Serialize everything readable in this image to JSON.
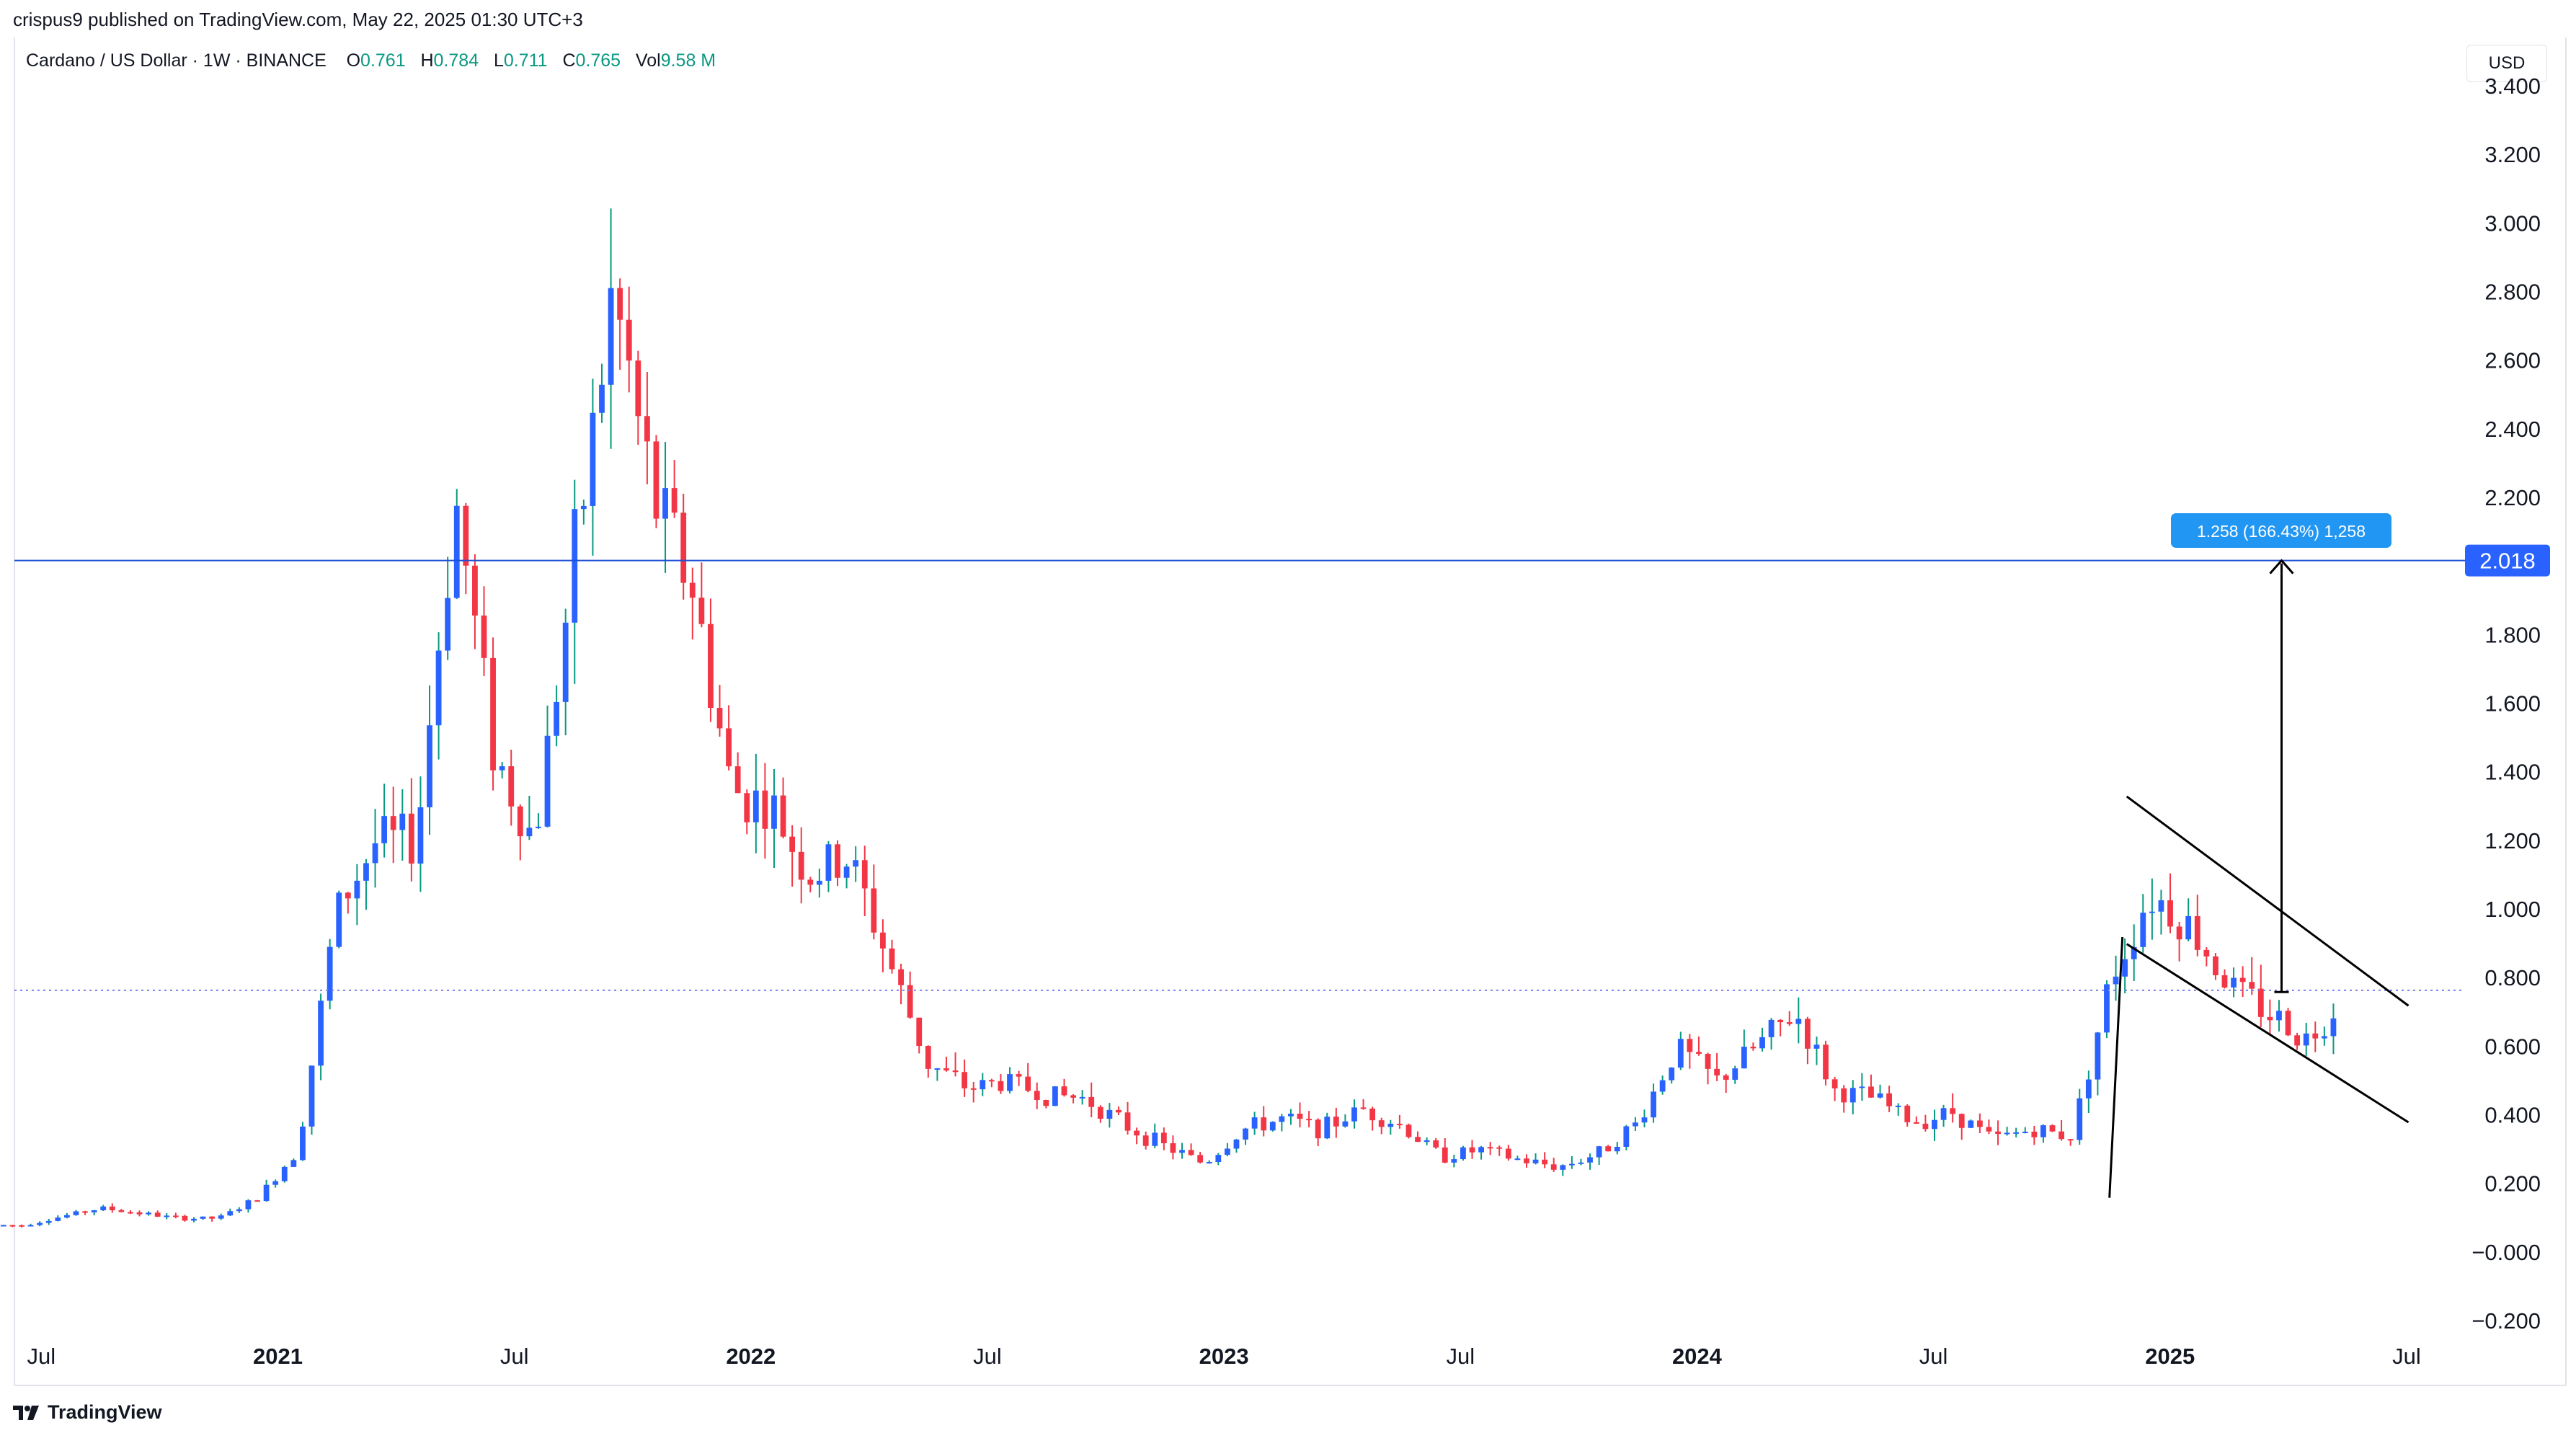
{
  "header": {
    "publisher": "crispus9 published on TradingView.com, May 22, 2025 01:30 UTC+3",
    "symbol_line": "Cardano / US Dollar · 1W · BINANCE",
    "ohlc": {
      "o_label": "O",
      "o": "0.761",
      "h_label": "H",
      "h": "0.784",
      "l_label": "L",
      "l": "0.711",
      "c_label": "C",
      "c": "0.765",
      "vol_label": "Vol",
      "vol": "9.58 M"
    }
  },
  "currency_button": "USD",
  "footer": {
    "brand": "TradingView",
    "logo_icon": "tradingview-logo-icon"
  },
  "colors": {
    "up": "#2962ff",
    "down": "#f23645",
    "level": "#1e4fd6",
    "label_bg": "#2962ff",
    "measure_bg": "#2196f3",
    "current": "#7b7ee8",
    "wick_up": "#089981",
    "wick_down": "#f23645"
  },
  "chart_data": {
    "type": "candlestick",
    "interval": "1W",
    "y_axis": {
      "min": -0.2,
      "max": 3.4,
      "ticks": [
        "3.400",
        "3.200",
        "3.000",
        "2.800",
        "2.600",
        "2.400",
        "2.200",
        "2.000",
        "1.800",
        "1.600",
        "1.400",
        "1.200",
        "1.000",
        "0.800",
        "0.600",
        "0.400",
        "0.200",
        "−0.000",
        "−0.200"
      ]
    },
    "x_axis_labels": [
      {
        "label": "Jul",
        "date": "2020-07",
        "bold": false
      },
      {
        "label": "2021",
        "date": "2021-01",
        "bold": true
      },
      {
        "label": "Jul",
        "date": "2021-07",
        "bold": false
      },
      {
        "label": "2022",
        "date": "2022-01",
        "bold": true
      },
      {
        "label": "Jul",
        "date": "2022-07",
        "bold": false
      },
      {
        "label": "2023",
        "date": "2023-01",
        "bold": true
      },
      {
        "label": "Jul",
        "date": "2023-07",
        "bold": false
      },
      {
        "label": "2024",
        "date": "2024-01",
        "bold": true
      },
      {
        "label": "Jul",
        "date": "2024-07",
        "bold": false
      },
      {
        "label": "2025",
        "date": "2025-01",
        "bold": true
      },
      {
        "label": "Jul",
        "date": "2025-07",
        "bold": false
      }
    ],
    "horizontal_level": {
      "value": 2.018,
      "label": "2.018"
    },
    "current_price": 0.765,
    "measure": {
      "text": "1.258 (166.43%) 1,258",
      "from_price": 0.76,
      "to_price": 2.018,
      "date": "2025-03"
    },
    "trendlines": [
      {
        "name": "flag-pole",
        "from": {
          "date": "2024-11",
          "price": 0.16
        },
        "to": {
          "date": "2024-11",
          "price": 0.92
        }
      },
      {
        "name": "channel-upper",
        "from": {
          "date": "2024-11",
          "price": 1.33
        },
        "to": {
          "date": "2025-06",
          "price": 0.72
        }
      },
      {
        "name": "channel-lower",
        "from": {
          "date": "2024-11",
          "price": 0.9
        },
        "to": {
          "date": "2025-06",
          "price": 0.38
        }
      }
    ],
    "anchors": [
      [
        "2020-06",
        0.08
      ],
      [
        "2020-08",
        0.13
      ],
      [
        "2020-10",
        0.1
      ],
      [
        "2020-11",
        0.1
      ],
      [
        "2020-12",
        0.16
      ],
      [
        "2021-01",
        0.3
      ],
      [
        "2021-02",
        1.0
      ],
      [
        "2021-03",
        1.2
      ],
      [
        "2021-04",
        1.2
      ],
      [
        "2021-05",
        2.2
      ],
      [
        "2021-06",
        1.45
      ],
      [
        "2021-07",
        1.2
      ],
      [
        "2021-08",
        2.0
      ],
      [
        "2021-09",
        2.8
      ],
      [
        "2021-10",
        2.2
      ],
      [
        "2021-11",
        1.95
      ],
      [
        "2021-12",
        1.35
      ],
      [
        "2022-01",
        1.3
      ],
      [
        "2022-02",
        1.1
      ],
      [
        "2022-03",
        1.15
      ],
      [
        "2022-04",
        0.85
      ],
      [
        "2022-05",
        0.55
      ],
      [
        "2022-06",
        0.48
      ],
      [
        "2022-07",
        0.5
      ],
      [
        "2022-08",
        0.46
      ],
      [
        "2022-09",
        0.45
      ],
      [
        "2022-10",
        0.37
      ],
      [
        "2022-11",
        0.31
      ],
      [
        "2022-12",
        0.26
      ],
      [
        "2023-01",
        0.36
      ],
      [
        "2023-02",
        0.39
      ],
      [
        "2023-03",
        0.36
      ],
      [
        "2023-04",
        0.42
      ],
      [
        "2023-05",
        0.37
      ],
      [
        "2023-06",
        0.28
      ],
      [
        "2023-07",
        0.3
      ],
      [
        "2023-08",
        0.27
      ],
      [
        "2023-09",
        0.25
      ],
      [
        "2023-10",
        0.29
      ],
      [
        "2023-11",
        0.38
      ],
      [
        "2023-12",
        0.6
      ],
      [
        "2024-01",
        0.5
      ],
      [
        "2024-02",
        0.6
      ],
      [
        "2024-03",
        0.7
      ],
      [
        "2024-04",
        0.47
      ],
      [
        "2024-05",
        0.45
      ],
      [
        "2024-06",
        0.38
      ],
      [
        "2024-07",
        0.41
      ],
      [
        "2024-08",
        0.33
      ],
      [
        "2024-09",
        0.36
      ],
      [
        "2024-10",
        0.34
      ],
      [
        "2024-11",
        0.8
      ],
      [
        "2024-12",
        1.05
      ],
      [
        "2025-01",
        0.95
      ],
      [
        "2025-02",
        0.78
      ],
      [
        "2025-03",
        0.7
      ],
      [
        "2025-04",
        0.62
      ],
      [
        "2025-05",
        0.765
      ]
    ]
  }
}
